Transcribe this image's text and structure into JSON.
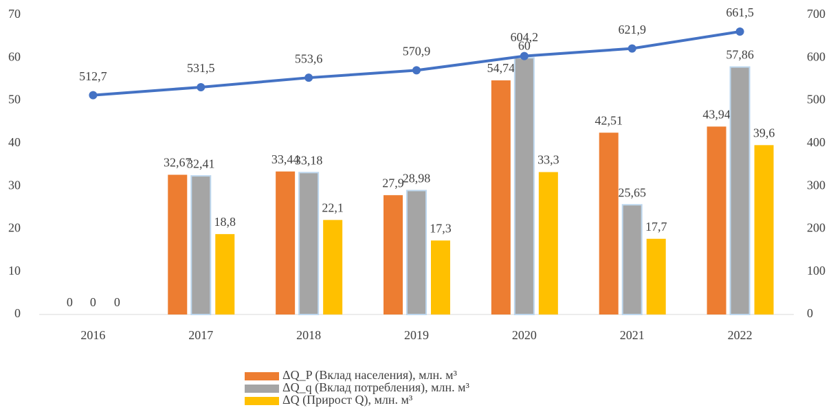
{
  "chart_data": {
    "type": "bar-line",
    "categories": [
      "2016",
      "2017",
      "2018",
      "2019",
      "2020",
      "2021",
      "2022"
    ],
    "series": [
      {
        "name": "ΔQ_P (Вклад населения), млн. м³",
        "color": "#ed7d31",
        "values": [
          0,
          32.67,
          33.44,
          27.9,
          54.74,
          42.51,
          43.94
        ],
        "value_labels": [
          "0",
          "32,67",
          "33,44",
          "27,9",
          "54,74",
          "42,51",
          "43,94"
        ]
      },
      {
        "name": "ΔQ_q (Вклад потребления), млн. м³",
        "color": "#a5a5a5",
        "values": [
          0,
          32.41,
          33.18,
          28.98,
          60,
          25.65,
          57.86
        ],
        "value_labels": [
          "0",
          "32,41",
          "33,18",
          "28,98",
          "60",
          "25,65",
          "57,86"
        ]
      },
      {
        "name": "ΔQ (Прирост Q), млн. м³",
        "color": "#ffc000",
        "values": [
          0,
          18.8,
          22.1,
          17.3,
          33.3,
          17.7,
          39.6
        ],
        "value_labels": [
          "0",
          "18,8",
          "22,1",
          "17,3",
          "33,3",
          "17,7",
          "39,6"
        ]
      },
      {
        "type": "line",
        "axis": "y2",
        "color": "#4472c4",
        "values": [
          512.7,
          531.5,
          553.6,
          570.9,
          604.2,
          621.9,
          661.5
        ],
        "value_labels": [
          "512,7",
          "531,5",
          "553,6",
          "570,9",
          "604,2",
          "621,9",
          "661,5"
        ]
      }
    ],
    "ylim": [
      0,
      70
    ],
    "yticks": [
      0,
      10,
      20,
      30,
      40,
      50,
      60,
      70
    ],
    "y2lim": [
      0,
      700
    ],
    "y2ticks": [
      0,
      100,
      200,
      300,
      400,
      500,
      600,
      700
    ]
  }
}
